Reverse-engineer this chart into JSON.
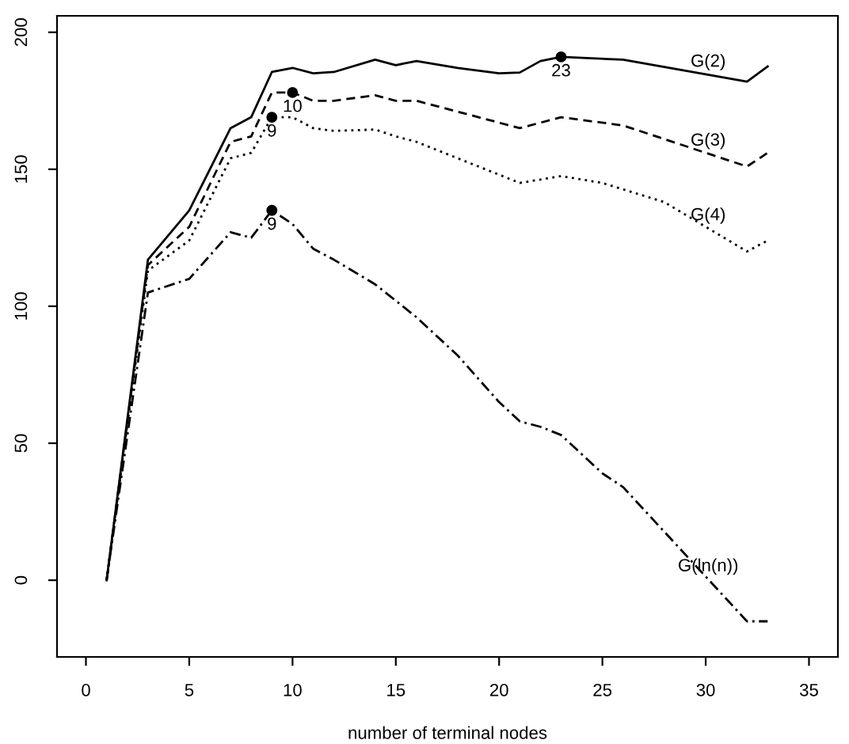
{
  "chart_data": {
    "type": "line",
    "xlabel": "number of terminal nodes",
    "xlim": [
      -1.4,
      36.4
    ],
    "xticks": [
      0,
      5,
      10,
      15,
      20,
      25,
      30,
      35
    ],
    "ylim": [
      -28,
      206
    ],
    "yticks": [
      0,
      50,
      100,
      150,
      200
    ],
    "grid": false,
    "legend": false,
    "marker": "none",
    "series": [
      {
        "name": "G(2)",
        "color": "#000000",
        "line_style": "solid",
        "x": [
          1,
          3,
          5,
          7,
          8,
          9,
          10,
          11,
          12,
          14,
          15,
          16,
          18,
          20,
          21,
          22,
          23,
          26,
          32,
          33
        ],
        "values": [
          0,
          117,
          135,
          165,
          169,
          185.5,
          187,
          185,
          185.5,
          190,
          188,
          189.5,
          187,
          185,
          185.3,
          189.5,
          191,
          190,
          182,
          187.5
        ]
      },
      {
        "name": "G(3)",
        "color": "#000000",
        "line_style": "dashed",
        "x": [
          1,
          3,
          5,
          7,
          8,
          9,
          10,
          11,
          12,
          14,
          15,
          16,
          18,
          21,
          23,
          26,
          30,
          32,
          33
        ],
        "values": [
          0,
          115,
          129,
          160,
          162,
          178,
          178,
          175,
          175,
          177,
          175,
          175,
          171,
          165,
          169,
          166,
          156,
          151,
          156
        ]
      },
      {
        "name": "G(4)",
        "color": "#000000",
        "line_style": "dotted",
        "x": [
          1,
          3,
          5,
          7,
          8,
          9,
          10,
          11,
          12,
          14,
          15,
          16,
          18,
          21,
          23,
          25,
          28,
          32,
          33
        ],
        "values": [
          0,
          113,
          124,
          154,
          156,
          169,
          169,
          165,
          164,
          164.5,
          162,
          160,
          154,
          145,
          147.5,
          145,
          138,
          120,
          124
        ]
      },
      {
        "name": "G(ln(n))",
        "color": "#000000",
        "line_style": "dashdot",
        "x": [
          1,
          3,
          5,
          7,
          8,
          9,
          10,
          11,
          12,
          14,
          15,
          16,
          18,
          20,
          21,
          22,
          23,
          25,
          26,
          32,
          33
        ],
        "values": [
          0,
          105,
          110,
          127,
          125,
          135,
          130,
          121,
          117,
          108,
          102,
          96,
          82,
          65,
          58,
          56,
          53,
          39,
          34,
          -15,
          -15
        ]
      }
    ],
    "annotations": [
      {
        "text": "23",
        "x": 23,
        "y": 191
      },
      {
        "text": "10",
        "x": 10,
        "y": 178
      },
      {
        "text": "9",
        "x": 9,
        "y": 169
      },
      {
        "text": "9",
        "x": 9,
        "y": 135
      }
    ]
  }
}
